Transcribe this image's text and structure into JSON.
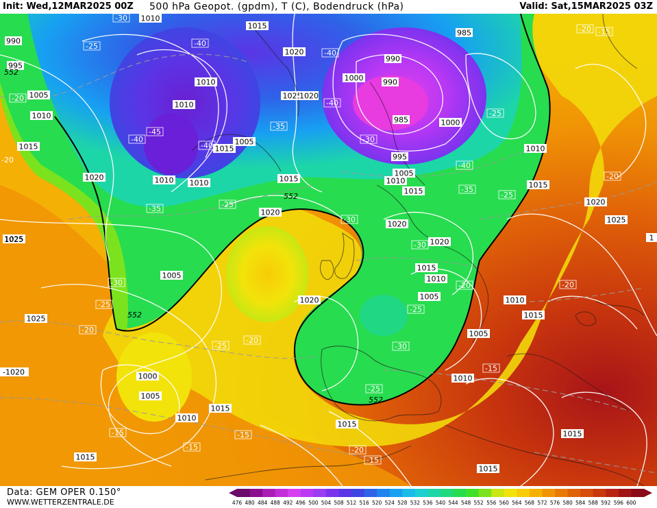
{
  "header": {
    "init": "Init: Wed,12MAR2025 00Z",
    "title": "500 hPa Geopot. (gpdm), T (C), Bodendruck (hPa)",
    "valid": "Valid: Sat,15MAR2025 03Z"
  },
  "footer": {
    "data_label": "Data: GEM OPER 0.150°",
    "site": "WWW.WETTERZENTRALE.DE"
  },
  "colorbar": {
    "levels": [
      476,
      480,
      484,
      488,
      492,
      496,
      500,
      504,
      508,
      512,
      516,
      520,
      524,
      528,
      532,
      536,
      540,
      544,
      548,
      552,
      556,
      560,
      564,
      568,
      572,
      576,
      580,
      584,
      588,
      592,
      596,
      600
    ],
    "colors": [
      "#6a0a6a",
      "#8a0f8e",
      "#a81fb5",
      "#c12ed8",
      "#d53ff0",
      "#b938f5",
      "#9a3cf2",
      "#7b33ee",
      "#5a35e6",
      "#3f45e2",
      "#2e63e8",
      "#1f84ef",
      "#17a0f2",
      "#19bbe9",
      "#1ccfd2",
      "#1dd6a8",
      "#1fd97d",
      "#27dc4f",
      "#3fe02a",
      "#7be31d",
      "#c8e713",
      "#f2e30a",
      "#f8cc07",
      "#f5b006",
      "#f09405",
      "#e97a06",
      "#e06208",
      "#d64c0a",
      "#c9370d",
      "#b72310",
      "#a11314",
      "#8a0b18"
    ]
  },
  "pressure_labels": [
    "1010",
    "1015",
    "990",
    "995",
    "1005",
    "1010",
    "1015",
    "1020",
    "1010",
    "1010",
    "1015",
    "1020",
    "1025",
    "1020",
    "1000",
    "990",
    "985",
    "990",
    "985",
    "1000",
    "1010",
    "995",
    "1005",
    "1010",
    "1015",
    "1015",
    "1020",
    "1020",
    "1015",
    "1020",
    "1025",
    "1005",
    "1020",
    "1015",
    "1010",
    "1010",
    "1005",
    "1005",
    "1010",
    "1015",
    "1010",
    "1000",
    "1005",
    "1010",
    "1015",
    "1015",
    "1015",
    "1010",
    "1015",
    "1025",
    "1025",
    "1020",
    "1005",
    "1015"
  ],
  "temperature_labels": [
    "-30",
    "-25",
    "-40",
    "-40",
    "-45",
    "-40",
    "-40",
    "-35",
    "-40",
    "-30",
    "-25",
    "-20",
    "-35",
    "-25",
    "-30",
    "-25",
    "-20",
    "-35",
    "-40",
    "-25",
    "-30",
    "-25",
    "-20",
    "-20",
    "-20",
    "-15",
    "-15",
    "-20",
    "-15",
    "-15",
    "-15",
    "-20",
    "-25",
    "-30",
    "-25",
    "-30",
    "-15",
    "-20"
  ],
  "geopotential_labels": [
    "552",
    "552",
    "552",
    "552"
  ],
  "edge_labels": [
    "-20",
    "1025",
    "-1020",
    "1"
  ]
}
